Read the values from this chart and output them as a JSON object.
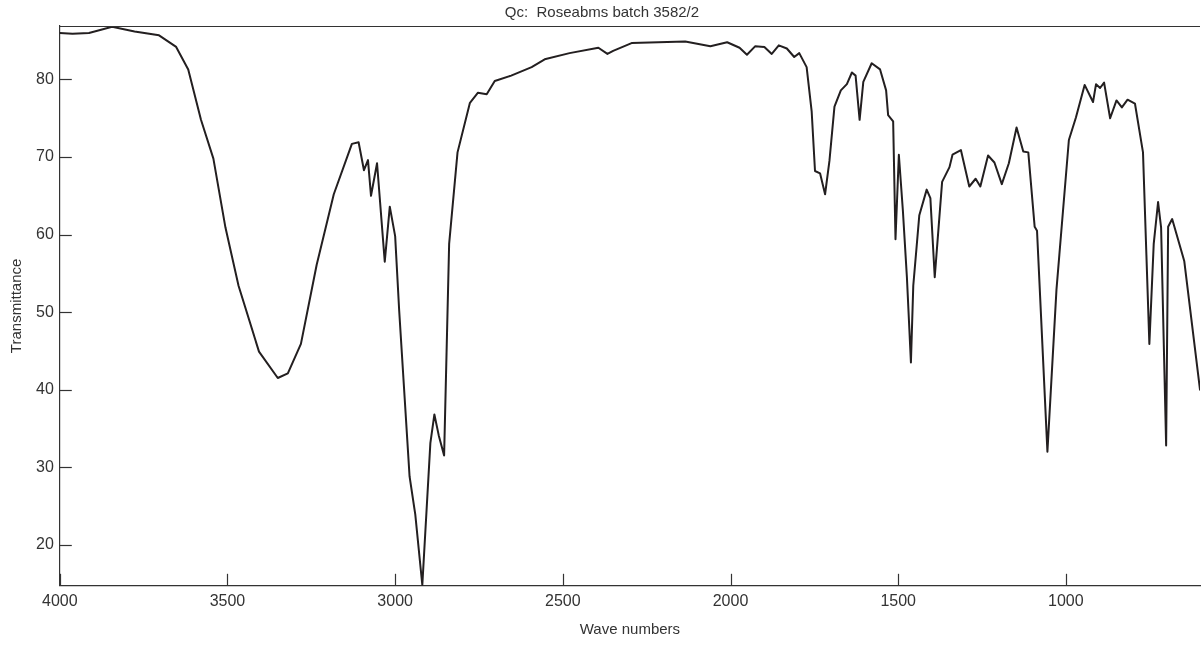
{
  "chart_data": {
    "type": "line",
    "title": "Qc:  Roseabms batch 3582/2",
    "xlabel": "Wave numbers",
    "ylabel": "Transmittance",
    "xlim": [
      4000,
      600
    ],
    "xticks": [
      4000,
      3500,
      3000,
      2500,
      2000,
      1500,
      1000
    ],
    "ylim": [
      14.7,
      86.9
    ],
    "yticks": [
      20,
      30,
      40,
      50,
      60,
      70,
      80
    ],
    "grid": false,
    "legend": false,
    "marker": "none",
    "line_style": "solid",
    "series": [
      {
        "color": "#231f20",
        "x": [
          4000,
          3962,
          3913,
          3844,
          3777,
          3704,
          3653,
          3617,
          3579,
          3542,
          3506,
          3467,
          3406,
          3350,
          3320,
          3281,
          3234,
          3183,
          3129,
          3109,
          3093,
          3081,
          3072,
          3054,
          3031,
          3016,
          3000,
          2988,
          2957,
          2940,
          2919,
          2895,
          2883,
          2870,
          2854,
          2839,
          2814,
          2777,
          2753,
          2727,
          2703,
          2654,
          2593,
          2554,
          2480,
          2394,
          2367,
          2350,
          2295,
          2135,
          2060,
          2010,
          1973,
          1951,
          1926,
          1899,
          1877,
          1856,
          1832,
          1810,
          1795,
          1773,
          1758,
          1748,
          1733,
          1718,
          1705,
          1690,
          1671,
          1653,
          1638,
          1627,
          1615,
          1604,
          1579,
          1554,
          1536,
          1530,
          1515,
          1508,
          1498,
          1486,
          1474,
          1462,
          1455,
          1437,
          1415,
          1404,
          1391,
          1369,
          1347,
          1338,
          1313,
          1288,
          1269,
          1255,
          1232,
          1213,
          1191,
          1170,
          1147,
          1127,
          1112,
          1093,
          1086,
          1055,
          1028,
          991,
          970,
          944,
          919,
          910,
          898,
          886,
          868,
          849,
          833,
          816,
          794,
          770,
          751,
          738,
          725,
          716,
          701,
          695,
          683,
          647,
          600
        ],
        "values": [
          86.0,
          85.9,
          86.0,
          86.8,
          86.2,
          85.7,
          84.2,
          81.3,
          74.8,
          69.8,
          60.9,
          53.4,
          44.9,
          41.5,
          42.1,
          45.9,
          56.1,
          65.2,
          71.7,
          71.9,
          68.3,
          69.6,
          65.0,
          69.2,
          56.5,
          63.6,
          59.8,
          50.2,
          28.8,
          23.9,
          14.8,
          33.1,
          36.8,
          34.1,
          31.5,
          58.8,
          70.6,
          77.0,
          78.3,
          78.1,
          79.8,
          80.5,
          81.6,
          82.6,
          83.4,
          84.1,
          83.3,
          83.7,
          84.7,
          84.9,
          84.3,
          84.8,
          84.1,
          83.2,
          84.3,
          84.2,
          83.3,
          84.4,
          84.0,
          82.9,
          83.4,
          81.6,
          75.9,
          68.2,
          67.9,
          65.2,
          69.5,
          76.5,
          78.6,
          79.4,
          80.9,
          80.5,
          74.8,
          79.7,
          82.1,
          81.3,
          78.6,
          75.4,
          74.6,
          59.4,
          70.3,
          63.1,
          54.5,
          43.5,
          53.4,
          62.5,
          65.8,
          64.7,
          54.5,
          66.8,
          68.7,
          70.3,
          70.9,
          66.2,
          67.2,
          66.2,
          70.2,
          69.3,
          66.5,
          69.2,
          73.8,
          70.7,
          70.6,
          61.0,
          60.5,
          32.0,
          52.9,
          72.2,
          75.1,
          79.3,
          77.1,
          79.4,
          78.9,
          79.6,
          75.0,
          77.3,
          76.4,
          77.4,
          76.9,
          70.6,
          45.9,
          58.8,
          64.2,
          60.9,
          32.8,
          61.0,
          62.0,
          56.6,
          40.0
        ]
      }
    ]
  }
}
